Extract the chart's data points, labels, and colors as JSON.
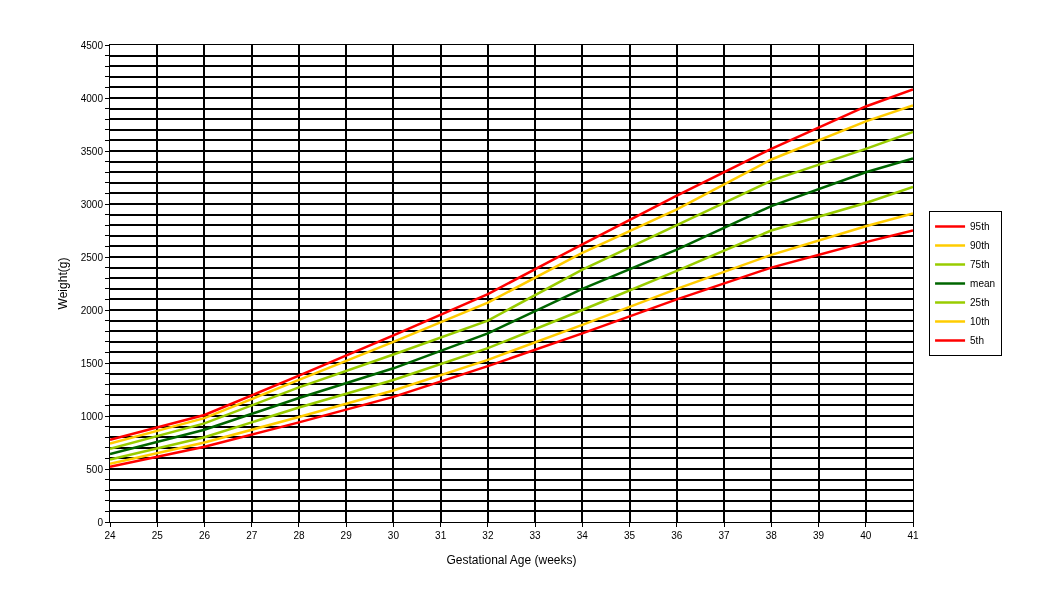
{
  "chart_data": {
    "type": "line",
    "xlabel": "Gestational Age (weeks)",
    "ylabel": "Weight(g)",
    "x": [
      24,
      26,
      28,
      30,
      32,
      34,
      36,
      38,
      40,
      41
    ],
    "series": [
      {
        "name": "95th",
        "color": "#ff0000",
        "values": [
          775,
          1010,
          1380,
          1760,
          2150,
          2620,
          3080,
          3520,
          3920,
          4080
        ]
      },
      {
        "name": "90th",
        "color": "#ffcc00",
        "values": [
          740,
          980,
          1340,
          1700,
          2070,
          2540,
          2950,
          3420,
          3780,
          3930
        ]
      },
      {
        "name": "75th",
        "color": "#99cc00",
        "values": [
          690,
          930,
          1270,
          1580,
          1900,
          2380,
          2800,
          3220,
          3520,
          3680
        ]
      },
      {
        "name": "mean",
        "color": "#006600",
        "values": [
          640,
          870,
          1170,
          1450,
          1780,
          2200,
          2570,
          2980,
          3300,
          3430
        ]
      },
      {
        "name": "25th",
        "color": "#99cc00",
        "values": [
          590,
          800,
          1080,
          1340,
          1640,
          2000,
          2370,
          2750,
          3010,
          3160
        ]
      },
      {
        "name": "10th",
        "color": "#ffcc00",
        "values": [
          550,
          750,
          990,
          1240,
          1530,
          1860,
          2200,
          2520,
          2790,
          2910
        ]
      },
      {
        "name": "5th",
        "color": "#ff0000",
        "values": [
          520,
          710,
          940,
          1180,
          1470,
          1780,
          2100,
          2400,
          2640,
          2750
        ]
      }
    ],
    "xlim": [
      24,
      41
    ],
    "xticks": [
      24,
      25,
      26,
      27,
      28,
      29,
      30,
      31,
      32,
      33,
      34,
      35,
      36,
      37,
      38,
      39,
      40,
      41
    ],
    "ylim": [
      0,
      4500
    ],
    "yticks": [
      0,
      {
        "value": 100,
        "label": null
      },
      {
        "value": 200,
        "label": null
      },
      {
        "value": 300,
        "label": null
      },
      {
        "value": 400,
        "label": null
      },
      500,
      {
        "value": 600,
        "label": null
      },
      {
        "value": 700,
        "label": null
      },
      {
        "value": 800,
        "label": null
      },
      {
        "value": 900,
        "label": null
      },
      1000,
      {
        "value": 1100,
        "label": null
      },
      {
        "value": 1200,
        "label": null
      },
      {
        "value": 1300,
        "label": null
      },
      {
        "value": 1400,
        "label": null
      },
      1500,
      {
        "value": 1600,
        "label": null
      },
      {
        "value": 1700,
        "label": null
      },
      {
        "value": 1800,
        "label": null
      },
      {
        "value": 1900,
        "label": null
      },
      2000,
      {
        "value": 2100,
        "label": null
      },
      {
        "value": 2200,
        "label": null
      },
      {
        "value": 2300,
        "label": null
      },
      {
        "value": 2400,
        "label": null
      },
      2500,
      {
        "value": 2600,
        "label": null
      },
      {
        "value": 2700,
        "label": null
      },
      {
        "value": 2800,
        "label": null
      },
      {
        "value": 2900,
        "label": null
      },
      3000,
      {
        "value": 3100,
        "label": null
      },
      {
        "value": 3200,
        "label": null
      },
      {
        "value": 3300,
        "label": null
      },
      {
        "value": 3400,
        "label": null
      },
      3500,
      {
        "value": 3600,
        "label": null
      },
      {
        "value": 3700,
        "label": null
      },
      {
        "value": 3800,
        "label": null
      },
      {
        "value": 3900,
        "label": null
      },
      4000,
      {
        "value": 4100,
        "label": null
      },
      {
        "value": 4200,
        "label": null
      },
      {
        "value": 4300,
        "label": null
      },
      {
        "value": 4400,
        "label": null
      },
      4500
    ],
    "grid": true,
    "legend": "right",
    "marker": "none",
    "line_style": "solid"
  }
}
